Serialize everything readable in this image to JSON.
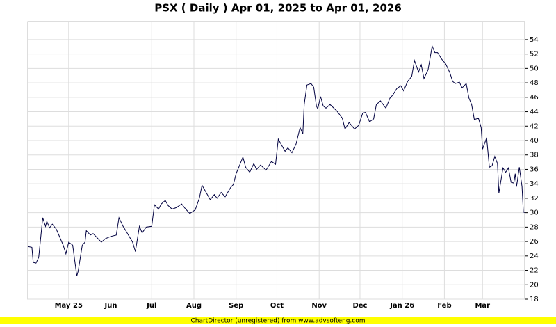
{
  "chart_data": {
    "type": "line",
    "title": "PSX ( Daily ) Apr 01, 2025 to Apr 01, 2026",
    "footer": "ChartDirector (unregistered) from www.advsofteng.com",
    "x": [
      "2025-04-01",
      "2025-04-04",
      "2025-04-05",
      "2025-04-07",
      "2025-04-09",
      "2025-04-12",
      "2025-04-14",
      "2025-04-15",
      "2025-04-17",
      "2025-04-19",
      "2025-04-22",
      "2025-04-27",
      "2025-04-29",
      "2025-05-01",
      "2025-05-04",
      "2025-05-07",
      "2025-05-08",
      "2025-05-11",
      "2025-05-13",
      "2025-05-14",
      "2025-05-17",
      "2025-05-19",
      "2025-05-22",
      "2025-05-25",
      "2025-05-28",
      "2025-06-01",
      "2025-06-05",
      "2025-06-07",
      "2025-06-10",
      "2025-06-12",
      "2025-06-17",
      "2025-06-19",
      "2025-06-22",
      "2025-06-24",
      "2025-06-27",
      "2025-07-01",
      "2025-07-03",
      "2025-07-06",
      "2025-07-08",
      "2025-07-11",
      "2025-07-13",
      "2025-07-16",
      "2025-07-19",
      "2025-07-23",
      "2025-07-26",
      "2025-07-29",
      "2025-08-02",
      "2025-08-05",
      "2025-08-07",
      "2025-08-10",
      "2025-08-13",
      "2025-08-16",
      "2025-08-18",
      "2025-08-21",
      "2025-08-24",
      "2025-08-28",
      "2025-08-30",
      "2025-09-01",
      "2025-09-03",
      "2025-09-06",
      "2025-09-08",
      "2025-09-11",
      "2025-09-14",
      "2025-09-16",
      "2025-09-19",
      "2025-09-23",
      "2025-09-27",
      "2025-09-30",
      "2025-10-02",
      "2025-10-04",
      "2025-10-07",
      "2025-10-09",
      "2025-10-12",
      "2025-10-15",
      "2025-10-18",
      "2025-10-20",
      "2025-10-21",
      "2025-10-23",
      "2025-10-26",
      "2025-10-28",
      "2025-10-30",
      "2025-10-31",
      "2025-11-02",
      "2025-11-04",
      "2025-11-06",
      "2025-11-09",
      "2025-11-14",
      "2025-11-18",
      "2025-11-20",
      "2025-11-23",
      "2025-11-27",
      "2025-11-30",
      "2025-12-03",
      "2025-12-05",
      "2025-12-08",
      "2025-12-11",
      "2025-12-13",
      "2025-12-16",
      "2025-12-20",
      "2025-12-23",
      "2025-12-25",
      "2025-12-28",
      "2025-12-31",
      "2026-01-02",
      "2026-01-05",
      "2026-01-08",
      "2026-01-10",
      "2026-01-13",
      "2026-01-15",
      "2026-01-17",
      "2026-01-20",
      "2026-01-23",
      "2026-01-25",
      "2026-01-27",
      "2026-01-30",
      "2026-02-02",
      "2026-02-05",
      "2026-02-07",
      "2026-02-09",
      "2026-02-12",
      "2026-02-14",
      "2026-02-17",
      "2026-02-19",
      "2026-02-21",
      "2026-02-23",
      "2026-02-26",
      "2026-02-28",
      "2026-03-01",
      "2026-03-04",
      "2026-03-06",
      "2026-03-08",
      "2026-03-10",
      "2026-03-12",
      "2026-03-13",
      "2026-03-16",
      "2026-03-18",
      "2026-03-20",
      "2026-03-22",
      "2026-03-24",
      "2026-03-25",
      "2026-03-26",
      "2026-03-28",
      "2026-03-30",
      "2026-03-31",
      "2026-04-01"
    ],
    "series": [
      {
        "color": "#000040",
        "values": [
          25.3,
          25.2,
          23.1,
          23.0,
          23.8,
          29.3,
          28.1,
          28.8,
          27.9,
          28.4,
          27.7,
          25.5,
          24.3,
          25.9,
          25.5,
          21.2,
          21.9,
          25.5,
          25.9,
          27.5,
          26.9,
          27.1,
          26.5,
          25.9,
          26.4,
          26.7,
          26.9,
          29.3,
          28.1,
          27.5,
          25.9,
          24.6,
          28.1,
          27.2,
          28.0,
          28.1,
          31.1,
          30.5,
          31.2,
          31.7,
          31.0,
          30.5,
          30.7,
          31.2,
          30.5,
          29.9,
          30.4,
          32.0,
          33.8,
          32.8,
          31.8,
          32.5,
          32.0,
          32.8,
          32.2,
          33.5,
          33.9,
          35.4,
          36.3,
          37.7,
          36.3,
          35.6,
          36.8,
          36.0,
          36.6,
          35.9,
          37.1,
          36.7,
          40.2,
          39.5,
          38.5,
          39.0,
          38.3,
          39.5,
          41.8,
          40.9,
          45.0,
          47.7,
          47.9,
          47.4,
          44.8,
          44.4,
          46.1,
          44.8,
          44.5,
          45.0,
          44.1,
          43.1,
          41.6,
          42.5,
          41.6,
          42.1,
          43.8,
          43.9,
          42.6,
          43.0,
          45.0,
          45.5,
          44.5,
          45.9,
          46.3,
          47.2,
          47.6,
          46.9,
          48.2,
          48.9,
          51.1,
          49.5,
          50.5,
          48.6,
          49.8,
          53.1,
          52.2,
          52.2,
          51.3,
          50.6,
          49.4,
          48.2,
          47.9,
          48.1,
          47.3,
          47.9,
          45.9,
          45.0,
          42.9,
          43.1,
          41.8,
          38.8,
          40.4,
          36.3,
          36.5,
          37.8,
          36.8,
          32.7,
          36.2,
          35.6,
          36.2,
          34.2,
          34.1,
          35.4,
          33.6,
          36.3,
          33.6,
          30.1,
          30.0
        ]
      }
    ],
    "xlim": [
      "2025-04-01",
      "2026-04-01"
    ],
    "xticks": [
      {
        "value": "2025-05-01",
        "label": "May 25"
      },
      {
        "value": "2025-06-01",
        "label": "Jun"
      },
      {
        "value": "2025-07-01",
        "label": "Jul"
      },
      {
        "value": "2025-08-01",
        "label": "Aug"
      },
      {
        "value": "2025-09-01",
        "label": "Sep"
      },
      {
        "value": "2025-10-01",
        "label": "Oct"
      },
      {
        "value": "2025-11-01",
        "label": "Nov"
      },
      {
        "value": "2025-12-01",
        "label": "Dec"
      },
      {
        "value": "2026-01-01",
        "label": "Jan 26"
      },
      {
        "value": "2026-02-01",
        "label": "Feb"
      },
      {
        "value": "2026-03-01",
        "label": "Mar"
      }
    ],
    "ylim": [
      18,
      56.5
    ],
    "yticks": [
      18,
      20,
      22,
      24,
      26,
      28,
      30,
      32,
      34,
      36,
      38,
      40,
      42,
      44,
      46,
      48,
      50,
      52,
      54
    ],
    "grid": true
  }
}
